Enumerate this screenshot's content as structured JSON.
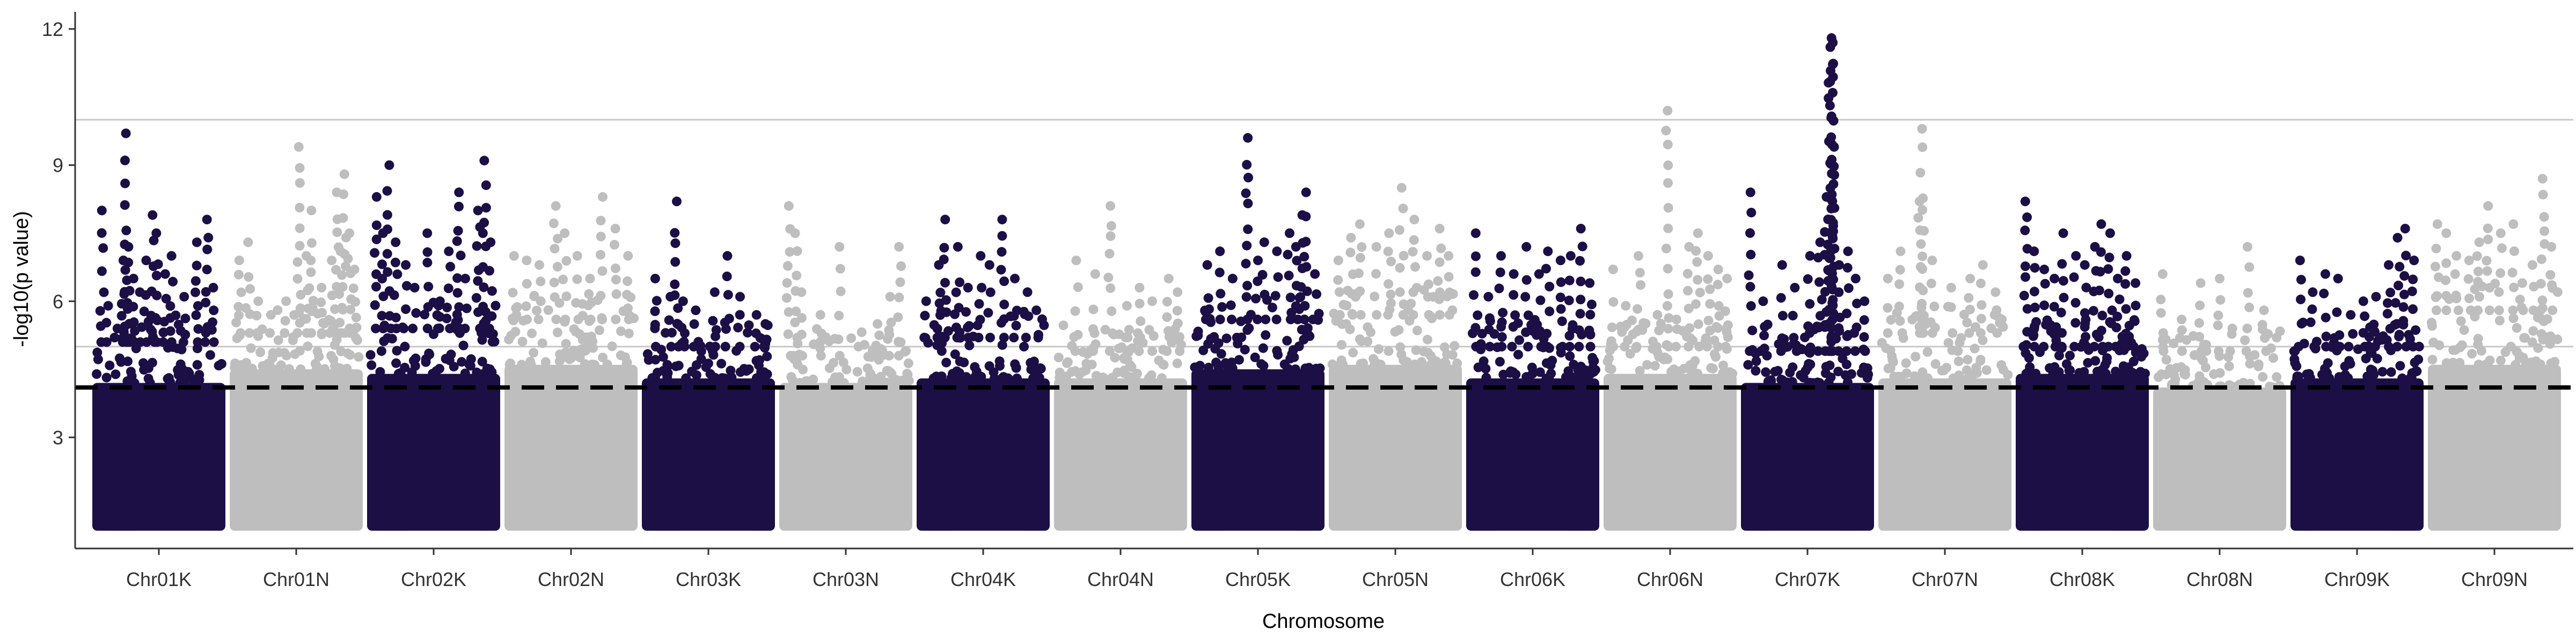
{
  "chart_data": {
    "type": "scatter",
    "title": "",
    "xlabel": "Chromosome",
    "ylabel": "-log10(p value)",
    "ylim": [
      0,
      12.3
    ],
    "y_ticks": [
      3,
      6,
      9,
      12
    ],
    "categories": [
      "Chr01K",
      "Chr01N",
      "Chr02K",
      "Chr02N",
      "Chr03K",
      "Chr03N",
      "Chr04K",
      "Chr04N",
      "Chr05K",
      "Chr05N",
      "Chr06K",
      "Chr06N",
      "Chr07K",
      "Chr07N",
      "Chr08K",
      "Chr08N",
      "Chr09K",
      "Chr09N"
    ],
    "colors": {
      "K": "#1c0f45",
      "N": "#bebebe"
    },
    "threshold_lines": [
      {
        "y": 4.1,
        "style": "dashed",
        "color": "#000000"
      },
      {
        "y": 5.0,
        "style": "solid",
        "color": "#c8c8c8"
      },
      {
        "y": 10.0,
        "style": "solid",
        "color": "#c8c8c8"
      }
    ],
    "grid": false,
    "legend": "none",
    "series": [
      {
        "category": "Chr01K",
        "base_top": 4.2,
        "dense_top": 5.1,
        "peaks": [
          [
            0.05,
            8.0
          ],
          [
            0.1,
            5.9
          ],
          [
            0.15,
            5.2
          ],
          [
            0.22,
            6.9
          ],
          [
            0.24,
            9.7
          ],
          [
            0.26,
            7.2
          ],
          [
            0.3,
            6.5
          ],
          [
            0.35,
            6.2
          ],
          [
            0.4,
            6.9
          ],
          [
            0.45,
            7.9
          ],
          [
            0.48,
            7.5
          ],
          [
            0.55,
            6.6
          ],
          [
            0.6,
            7.0
          ],
          [
            0.7,
            6.1
          ],
          [
            0.8,
            7.3
          ],
          [
            0.88,
            7.8
          ],
          [
            0.93,
            6.3
          ]
        ]
      },
      {
        "category": "Chr01N",
        "base_top": 4.5,
        "dense_top": 5.3,
        "peaks": [
          [
            0.05,
            6.9
          ],
          [
            0.12,
            7.3
          ],
          [
            0.2,
            6.0
          ],
          [
            0.3,
            5.7
          ],
          [
            0.42,
            6.0
          ],
          [
            0.52,
            9.4
          ],
          [
            0.58,
            7.0
          ],
          [
            0.62,
            8.0
          ],
          [
            0.7,
            6.3
          ],
          [
            0.78,
            6.9
          ],
          [
            0.82,
            8.4
          ],
          [
            0.85,
            7.1
          ],
          [
            0.88,
            8.8
          ],
          [
            0.92,
            7.5
          ],
          [
            0.96,
            6.7
          ]
        ]
      },
      {
        "category": "Chr02K",
        "base_top": 4.4,
        "dense_top": 5.4,
        "peaks": [
          [
            0.05,
            8.3
          ],
          [
            0.1,
            7.5
          ],
          [
            0.15,
            9.0
          ],
          [
            0.2,
            7.3
          ],
          [
            0.28,
            6.8
          ],
          [
            0.35,
            6.3
          ],
          [
            0.45,
            7.5
          ],
          [
            0.55,
            6.0
          ],
          [
            0.62,
            7.1
          ],
          [
            0.7,
            8.4
          ],
          [
            0.75,
            6.5
          ],
          [
            0.85,
            8.0
          ],
          [
            0.9,
            9.1
          ],
          [
            0.95,
            7.3
          ]
        ]
      },
      {
        "category": "Chr02N",
        "base_top": 4.6,
        "dense_top": 5.6,
        "peaks": [
          [
            0.05,
            7.0
          ],
          [
            0.15,
            6.9
          ],
          [
            0.25,
            6.8
          ],
          [
            0.38,
            8.1
          ],
          [
            0.45,
            7.5
          ],
          [
            0.55,
            7.0
          ],
          [
            0.65,
            6.5
          ],
          [
            0.75,
            8.3
          ],
          [
            0.85,
            7.6
          ],
          [
            0.95,
            7.0
          ]
        ]
      },
      {
        "category": "Chr03K",
        "base_top": 4.3,
        "dense_top": 5.0,
        "peaks": [
          [
            0.08,
            6.5
          ],
          [
            0.2,
            6.1
          ],
          [
            0.25,
            8.2
          ],
          [
            0.3,
            6.0
          ],
          [
            0.4,
            5.8
          ],
          [
            0.55,
            6.2
          ],
          [
            0.65,
            7.0
          ],
          [
            0.75,
            6.1
          ],
          [
            0.88,
            5.7
          ],
          [
            0.95,
            5.5
          ]
        ]
      },
      {
        "category": "Chr03N",
        "base_top": 4.2,
        "dense_top": 4.8,
        "peaks": [
          [
            0.05,
            8.1
          ],
          [
            0.1,
            7.5
          ],
          [
            0.15,
            6.2
          ],
          [
            0.3,
            5.7
          ],
          [
            0.45,
            7.2
          ],
          [
            0.6,
            5.0
          ],
          [
            0.75,
            5.5
          ],
          [
            0.85,
            6.1
          ],
          [
            0.92,
            7.2
          ]
        ]
      },
      {
        "category": "Chr04K",
        "base_top": 4.3,
        "dense_top": 5.2,
        "peaks": [
          [
            0.05,
            6.0
          ],
          [
            0.15,
            6.8
          ],
          [
            0.2,
            7.8
          ],
          [
            0.3,
            7.2
          ],
          [
            0.38,
            6.3
          ],
          [
            0.48,
            7.0
          ],
          [
            0.55,
            6.8
          ],
          [
            0.65,
            7.8
          ],
          [
            0.75,
            6.5
          ],
          [
            0.85,
            6.2
          ],
          [
            0.92,
            5.8
          ]
        ]
      },
      {
        "category": "Chr04N",
        "base_top": 4.3,
        "dense_top": 4.9,
        "peaks": [
          [
            0.15,
            6.9
          ],
          [
            0.3,
            6.6
          ],
          [
            0.42,
            8.1
          ],
          [
            0.55,
            5.9
          ],
          [
            0.65,
            6.3
          ],
          [
            0.75,
            6.0
          ],
          [
            0.88,
            6.5
          ],
          [
            0.95,
            6.2
          ]
        ]
      },
      {
        "category": "Chr05K",
        "base_top": 4.5,
        "dense_top": 5.6,
        "peaks": [
          [
            0.1,
            6.8
          ],
          [
            0.2,
            7.1
          ],
          [
            0.3,
            6.5
          ],
          [
            0.42,
            9.6
          ],
          [
            0.5,
            6.9
          ],
          [
            0.55,
            7.3
          ],
          [
            0.65,
            7.1
          ],
          [
            0.75,
            7.5
          ],
          [
            0.8,
            7.2
          ],
          [
            0.85,
            7.9
          ],
          [
            0.88,
            8.4
          ],
          [
            0.95,
            6.6
          ]
        ]
      },
      {
        "category": "Chr05N",
        "base_top": 4.6,
        "dense_top": 5.7,
        "peaks": [
          [
            0.05,
            6.9
          ],
          [
            0.15,
            7.4
          ],
          [
            0.22,
            7.7
          ],
          [
            0.35,
            7.2
          ],
          [
            0.45,
            7.5
          ],
          [
            0.55,
            8.5
          ],
          [
            0.65,
            7.8
          ],
          [
            0.75,
            7.0
          ],
          [
            0.85,
            7.6
          ],
          [
            0.92,
            7.0
          ]
        ]
      },
      {
        "category": "Chr06K",
        "base_top": 4.3,
        "dense_top": 5.0,
        "peaks": [
          [
            0.05,
            7.5
          ],
          [
            0.15,
            6.1
          ],
          [
            0.25,
            7.0
          ],
          [
            0.35,
            6.6
          ],
          [
            0.45,
            7.2
          ],
          [
            0.55,
            6.6
          ],
          [
            0.62,
            7.1
          ],
          [
            0.72,
            6.9
          ],
          [
            0.8,
            7.0
          ],
          [
            0.88,
            7.6
          ],
          [
            0.95,
            6.4
          ]
        ]
      },
      {
        "category": "Chr06N",
        "base_top": 4.4,
        "dense_top": 5.0,
        "peaks": [
          [
            0.05,
            6.7
          ],
          [
            0.15,
            5.9
          ],
          [
            0.25,
            7.0
          ],
          [
            0.4,
            5.7
          ],
          [
            0.48,
            10.2
          ],
          [
            0.55,
            5.6
          ],
          [
            0.65,
            7.2
          ],
          [
            0.72,
            7.5
          ],
          [
            0.8,
            7.0
          ],
          [
            0.88,
            6.7
          ],
          [
            0.95,
            6.5
          ]
        ]
      },
      {
        "category": "Chr07K",
        "base_top": 4.2,
        "dense_top": 4.9,
        "peaks": [
          [
            0.05,
            8.4
          ],
          [
            0.15,
            6.0
          ],
          [
            0.3,
            6.8
          ],
          [
            0.4,
            6.3
          ],
          [
            0.52,
            7.0
          ],
          [
            0.6,
            7.3
          ],
          [
            0.65,
            8.3
          ],
          [
            0.68,
            11.6
          ],
          [
            0.69,
            11.8
          ],
          [
            0.7,
            11.7
          ],
          [
            0.71,
            9.4
          ],
          [
            0.75,
            6.8
          ],
          [
            0.82,
            7.1
          ],
          [
            0.88,
            6.5
          ],
          [
            0.95,
            6.0
          ]
        ]
      },
      {
        "category": "Chr07N",
        "base_top": 4.3,
        "dense_top": 5.3,
        "peaks": [
          [
            0.05,
            6.5
          ],
          [
            0.15,
            7.1
          ],
          [
            0.3,
            8.2
          ],
          [
            0.32,
            9.8
          ],
          [
            0.4,
            6.9
          ],
          [
            0.55,
            6.3
          ],
          [
            0.7,
            6.5
          ],
          [
            0.8,
            6.8
          ],
          [
            0.9,
            6.2
          ],
          [
            0.95,
            5.6
          ]
        ]
      },
      {
        "category": "Chr08K",
        "base_top": 4.4,
        "dense_top": 5.0,
        "peaks": [
          [
            0.05,
            8.2
          ],
          [
            0.12,
            7.1
          ],
          [
            0.2,
            6.7
          ],
          [
            0.28,
            6.5
          ],
          [
            0.35,
            7.5
          ],
          [
            0.45,
            7.0
          ],
          [
            0.52,
            6.8
          ],
          [
            0.6,
            7.2
          ],
          [
            0.65,
            7.7
          ],
          [
            0.72,
            7.5
          ],
          [
            0.78,
            6.5
          ],
          [
            0.85,
            7.0
          ],
          [
            0.92,
            6.4
          ]
        ]
      },
      {
        "category": "Chr08N",
        "base_top": 4.1,
        "dense_top": 4.9,
        "peaks": [
          [
            0.05,
            6.6
          ],
          [
            0.2,
            5.6
          ],
          [
            0.35,
            6.4
          ],
          [
            0.5,
            6.5
          ],
          [
            0.6,
            5.4
          ],
          [
            0.72,
            7.2
          ],
          [
            0.85,
            5.8
          ],
          [
            0.95,
            5.2
          ]
        ]
      },
      {
        "category": "Chr09K",
        "base_top": 4.3,
        "dense_top": 5.0,
        "peaks": [
          [
            0.05,
            6.9
          ],
          [
            0.15,
            6.2
          ],
          [
            0.25,
            6.6
          ],
          [
            0.35,
            6.5
          ],
          [
            0.45,
            5.7
          ],
          [
            0.55,
            6.0
          ],
          [
            0.65,
            6.1
          ],
          [
            0.75,
            6.8
          ],
          [
            0.82,
            7.4
          ],
          [
            0.88,
            7.6
          ],
          [
            0.95,
            6.9
          ]
        ]
      },
      {
        "category": "Chr09N",
        "base_top": 4.6,
        "dense_top": 5.8,
        "peaks": [
          [
            0.05,
            7.7
          ],
          [
            0.12,
            7.5
          ],
          [
            0.2,
            7.0
          ],
          [
            0.3,
            6.9
          ],
          [
            0.38,
            7.3
          ],
          [
            0.45,
            8.1
          ],
          [
            0.55,
            7.5
          ],
          [
            0.65,
            7.7
          ],
          [
            0.72,
            6.4
          ],
          [
            0.8,
            6.8
          ],
          [
            0.88,
            8.7
          ],
          [
            0.95,
            7.2
          ]
        ]
      }
    ]
  }
}
